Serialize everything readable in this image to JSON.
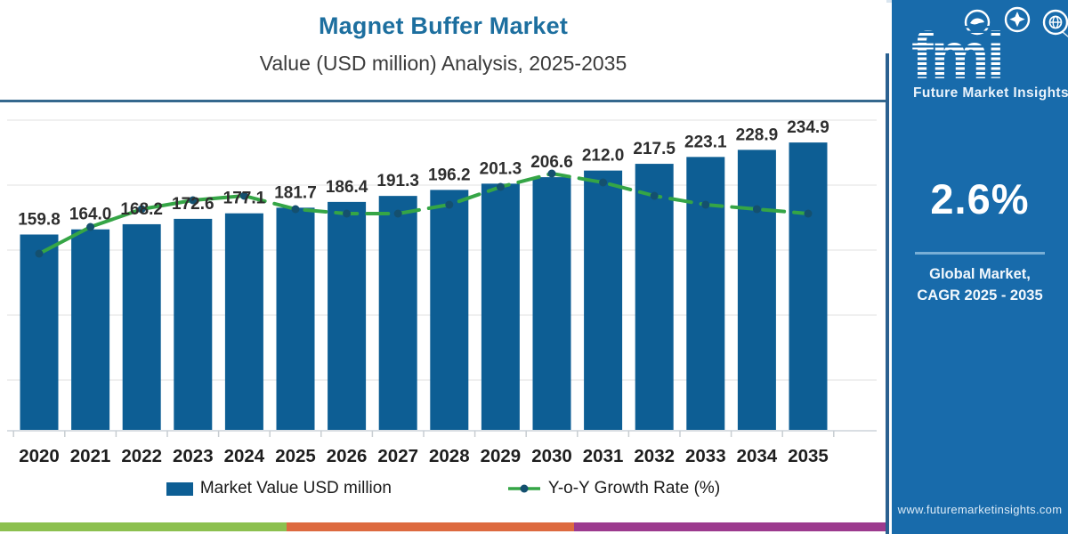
{
  "chart_data": {
    "type": "bar",
    "title": "Magnet Buffer Market",
    "subtitle": "Value (USD million) Analysis, 2025-2035",
    "xlabel": "",
    "ylabel": "",
    "grid": "horizontal-light",
    "legend_position": "bottom",
    "y_axis_labels_shown": false,
    "categories": [
      "2020",
      "2021",
      "2022",
      "2023",
      "2024",
      "2025",
      "2026",
      "2027",
      "2028",
      "2029",
      "2030",
      "2031",
      "2032",
      "2033",
      "2034",
      "2035"
    ],
    "series": [
      {
        "name": "Market Value USD million",
        "type": "bar",
        "color": "#0d5e94",
        "values": [
          159.8,
          164.0,
          168.2,
          172.6,
          177.1,
          181.7,
          186.4,
          191.3,
          196.2,
          201.3,
          206.6,
          212.0,
          217.5,
          223.1,
          228.9,
          234.9
        ],
        "labels": [
          "159.8",
          "164.0",
          "168.2",
          "172.6",
          "177.1",
          "181.7",
          "186.4",
          "191.3",
          "196.2",
          "201.3",
          "206.6",
          "212.0",
          "217.5",
          "223.1",
          "228.9",
          "234.9"
        ]
      },
      {
        "name": "Y-o-Y Growth Rate (%)",
        "type": "line",
        "color": "#35a546",
        "marker_color": "#14506f",
        "values_estimated_from_line_shape": true,
        "values": [
          2.51,
          2.57,
          2.61,
          2.63,
          2.64,
          2.61,
          2.6,
          2.6,
          2.62,
          2.66,
          2.69,
          2.67,
          2.64,
          2.62,
          2.61,
          2.6
        ]
      }
    ]
  },
  "legend": {
    "items": [
      {
        "label": "Market Value USD million",
        "swatch": "bar",
        "color": "#0d5e94"
      },
      {
        "label": "Y-o-Y Growth Rate (%)",
        "swatch": "line-dot",
        "color": "#35a546",
        "dot_color": "#14506f"
      }
    ]
  },
  "sidebar": {
    "bg_color": "#186bab",
    "logo_text": "fmi",
    "logo_subtext": "Future Market Insights",
    "stat_value": "2.6%",
    "stat_caption_line1": "Global Market,",
    "stat_caption_line2": "CAGR 2025 - 2035",
    "website": "www.futuremarketinsights.com"
  },
  "footer_strip": {
    "segments": [
      {
        "color": "#8cc04f",
        "fraction": 0.323
      },
      {
        "color": "#dd6a3f",
        "fraction": 0.325
      },
      {
        "color": "#9c3a8e",
        "fraction": 0.352
      }
    ]
  }
}
